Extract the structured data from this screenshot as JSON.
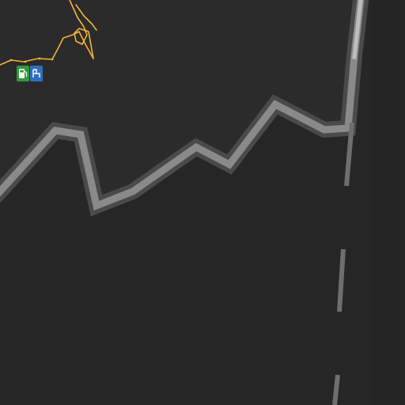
{
  "map": {
    "theme": "dark",
    "colors": {
      "land": "#262626",
      "land_upper": "#2b2b2b",
      "coastline": "#8c8c8c",
      "coastline_glow": "#5a5a5a",
      "road": "#f2b33a",
      "lane_marking": "#6e6e6e",
      "fuel_badge": "#2f9b3a",
      "parking_badge": "#2e6fbf"
    },
    "icons": [
      "fuel-station-icon",
      "parking-icon"
    ]
  }
}
